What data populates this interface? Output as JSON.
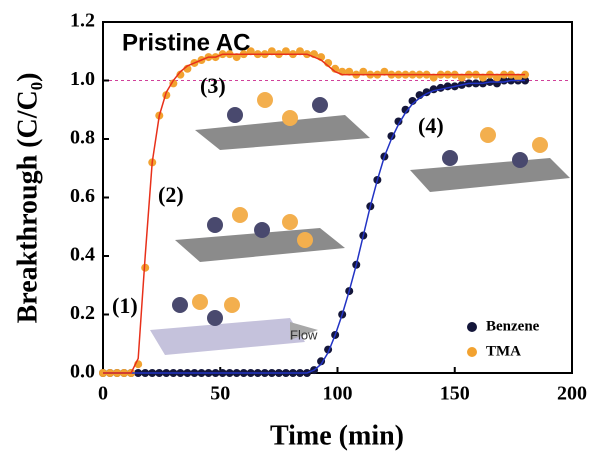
{
  "chart_data": {
    "type": "scatter",
    "title": "Pristine AC",
    "x_label": "Time (min)",
    "y_label": "Breakthrough (C/C₀)",
    "xlim": [
      0,
      200
    ],
    "xticks": [
      0,
      50,
      100,
      150,
      200
    ],
    "ylim": [
      0,
      1.2
    ],
    "yticks": [
      {
        "value": 0,
        "label": "0.0"
      },
      0.2,
      0.4,
      0.6,
      0.8,
      {
        "value": 1,
        "label": "1.0"
      },
      1.2
    ],
    "reference_line": {
      "value": 1,
      "color": "#d0409a"
    },
    "legend": "lower right",
    "x": [
      0,
      3,
      6,
      9,
      12,
      15,
      18,
      21,
      24,
      27,
      30,
      33,
      36,
      39,
      42,
      45,
      48,
      51,
      54,
      57,
      60,
      63,
      66,
      69,
      72,
      75,
      78,
      81,
      84,
      87,
      90,
      93,
      96,
      99,
      102,
      105,
      108,
      111,
      114,
      117,
      120,
      123,
      126,
      129,
      132,
      135,
      138,
      141,
      144,
      147,
      150,
      153,
      156,
      159,
      162,
      165,
      168,
      171,
      174,
      177,
      180
    ],
    "series": [
      {
        "name": "Benzene",
        "color": "#14163a",
        "line_color": "#2233c4",
        "values": [
          0,
          0,
          0,
          0,
          0,
          0,
          0,
          0,
          0,
          0,
          0,
          0,
          0,
          0,
          0,
          0,
          0,
          0,
          0,
          0,
          0,
          0,
          0,
          0,
          0,
          0,
          0,
          0,
          0,
          0,
          0.01,
          0.04,
          0.08,
          0.13,
          0.2,
          0.28,
          0.37,
          0.47,
          0.57,
          0.66,
          0.74,
          0.81,
          0.86,
          0.9,
          0.93,
          0.95,
          0.96,
          0.97,
          0.975,
          0.98,
          0.98,
          0.985,
          0.99,
          0.99,
          0.99,
          0.995,
          0.99,
          1,
          1,
          1,
          1
        ],
        "fit": [
          0,
          0,
          0,
          0,
          0,
          0,
          0,
          0,
          0,
          0,
          0,
          0,
          0,
          0,
          0,
          0,
          0,
          0,
          0,
          0,
          0,
          0,
          0,
          0,
          0,
          0,
          0,
          0,
          0,
          0,
          0.01,
          0.03,
          0.07,
          0.13,
          0.2,
          0.28,
          0.37,
          0.47,
          0.57,
          0.66,
          0.74,
          0.8,
          0.85,
          0.89,
          0.92,
          0.94,
          0.955,
          0.965,
          0.97,
          0.975,
          0.98,
          0.985,
          0.99,
          0.99,
          0.99,
          0.995,
          0.995,
          0.995,
          1,
          1,
          1
        ]
      },
      {
        "name": "TMA",
        "color": "#f2a230",
        "line_color": "#e8301a",
        "values": [
          0,
          0,
          0,
          0,
          0,
          0.03,
          0.36,
          0.72,
          0.88,
          0.95,
          0.99,
          1.02,
          1.04,
          1.06,
          1.07,
          1.08,
          1.08,
          1.09,
          1.09,
          1.08,
          1.09,
          1.1,
          1.09,
          1.09,
          1.1,
          1.09,
          1.1,
          1.09,
          1.1,
          1.09,
          1.09,
          1.08,
          1.06,
          1.04,
          1.03,
          1.03,
          1.02,
          1.03,
          1.02,
          1.02,
          1.03,
          1.02,
          1.02,
          1.02,
          1.02,
          1.02,
          1.02,
          1.01,
          1.02,
          1.02,
          1.02,
          1.01,
          1.02,
          1.02,
          1.01,
          1.02,
          1.01,
          1.02,
          1.02,
          1.01,
          1.02
        ],
        "fit": [
          0,
          0,
          0,
          0,
          0,
          0.05,
          0.4,
          0.72,
          0.88,
          0.96,
          1,
          1.03,
          1.05,
          1.06,
          1.07,
          1.08,
          1.08,
          1.09,
          1.09,
          1.09,
          1.09,
          1.09,
          1.09,
          1.09,
          1.09,
          1.09,
          1.09,
          1.09,
          1.09,
          1.09,
          1.08,
          1.07,
          1.05,
          1.03,
          1.02,
          1.02,
          1.02,
          1.02,
          1.02,
          1.02,
          1.02,
          1.02,
          1.02,
          1.02,
          1.02,
          1.02,
          1.02,
          1.02,
          1.02,
          1.02,
          1.02,
          1.02,
          1.02,
          1.02,
          1.02,
          1.02,
          1.02,
          1.02,
          1.02,
          1.02,
          1.02
        ]
      }
    ],
    "annotations": [
      "(1)",
      "(2)",
      "(3)",
      "(4)",
      "Flow"
    ]
  }
}
